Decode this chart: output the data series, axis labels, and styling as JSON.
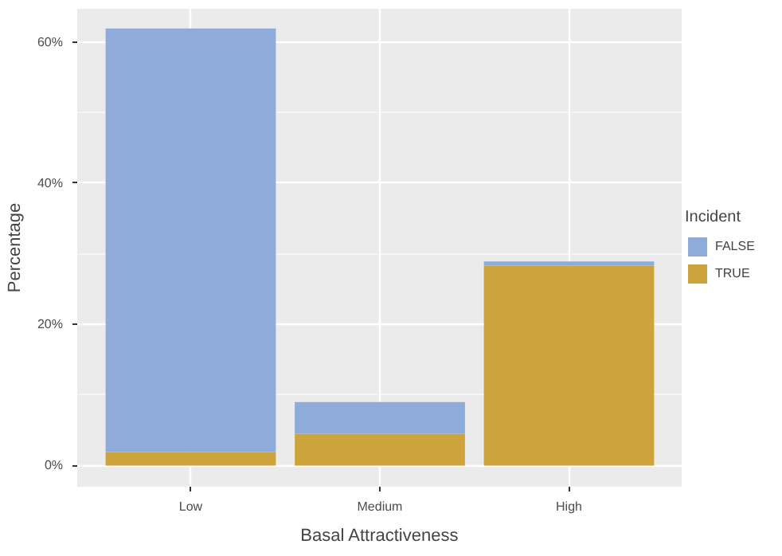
{
  "chart_data": {
    "type": "bar",
    "stacked": true,
    "xlabel": "Basal Attractiveness",
    "ylabel": "Percentage",
    "legend_title": "Incident",
    "legend": "right",
    "categories": [
      "Low",
      "Medium",
      "High"
    ],
    "series": [
      {
        "name": "TRUE",
        "color": "#cca43b",
        "values": [
          1.9,
          4.5,
          28.3
        ]
      },
      {
        "name": "FALSE",
        "color": "#8eabd9",
        "values": [
          60.0,
          4.5,
          0.6
        ]
      }
    ],
    "ylim": [
      -3,
      64.7
    ],
    "yticks": [
      {
        "value": 0,
        "label": "0%"
      },
      {
        "value": 20,
        "label": "20%"
      },
      {
        "value": 40,
        "label": "40%"
      },
      {
        "value": 60,
        "label": "60%"
      }
    ],
    "grid": true
  }
}
